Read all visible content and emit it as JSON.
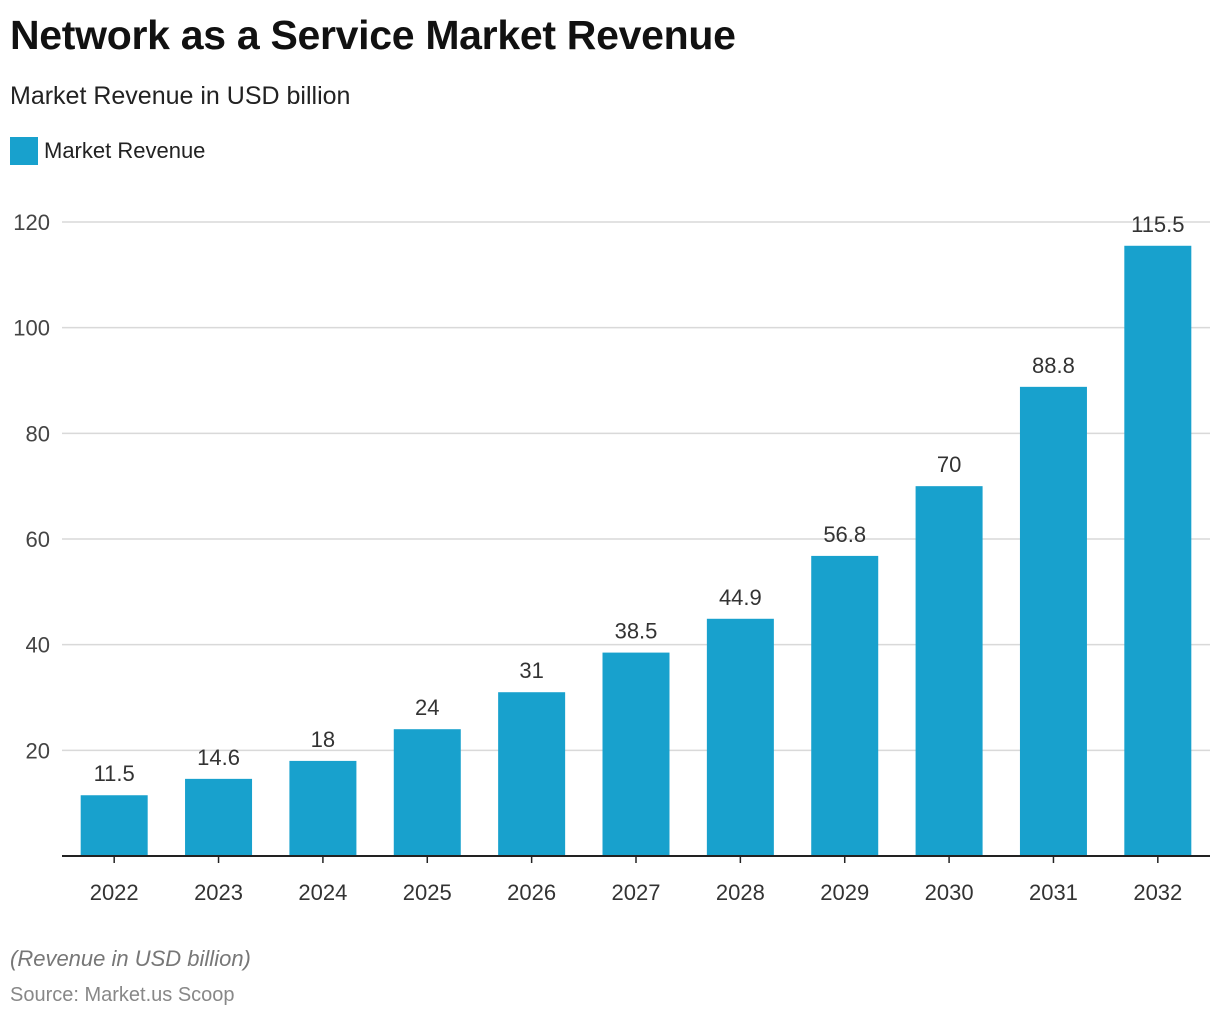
{
  "title": "Network as a Service Market Revenue",
  "subtitle": "Market Revenue in USD billion",
  "note": "(Revenue in USD billion)",
  "source": "Source: Market.us Scoop",
  "colors": {
    "bar": "#18a1cd",
    "grid": "#d9d9d9",
    "axis": "#222222"
  },
  "chart_data": {
    "type": "bar",
    "title": "Network as a Service Market Revenue",
    "subtitle": "Market Revenue in USD billion",
    "categories": [
      "2022",
      "2023",
      "2024",
      "2025",
      "2026",
      "2027",
      "2028",
      "2029",
      "2030",
      "2031",
      "2032"
    ],
    "series": [
      {
        "name": "Market Revenue",
        "values": [
          11.5,
          14.6,
          18,
          24,
          31,
          38.5,
          44.9,
          56.8,
          70,
          88.8,
          115.5
        ]
      }
    ],
    "data_labels": [
      "11.5",
      "14.6",
      "18",
      "24",
      "31",
      "38.5",
      "44.9",
      "56.8",
      "70",
      "88.8",
      "115.5"
    ],
    "ylim": [
      0,
      120
    ],
    "yticks": [
      20,
      40,
      60,
      80,
      100,
      120
    ],
    "grid": true,
    "legend": "top-left"
  }
}
